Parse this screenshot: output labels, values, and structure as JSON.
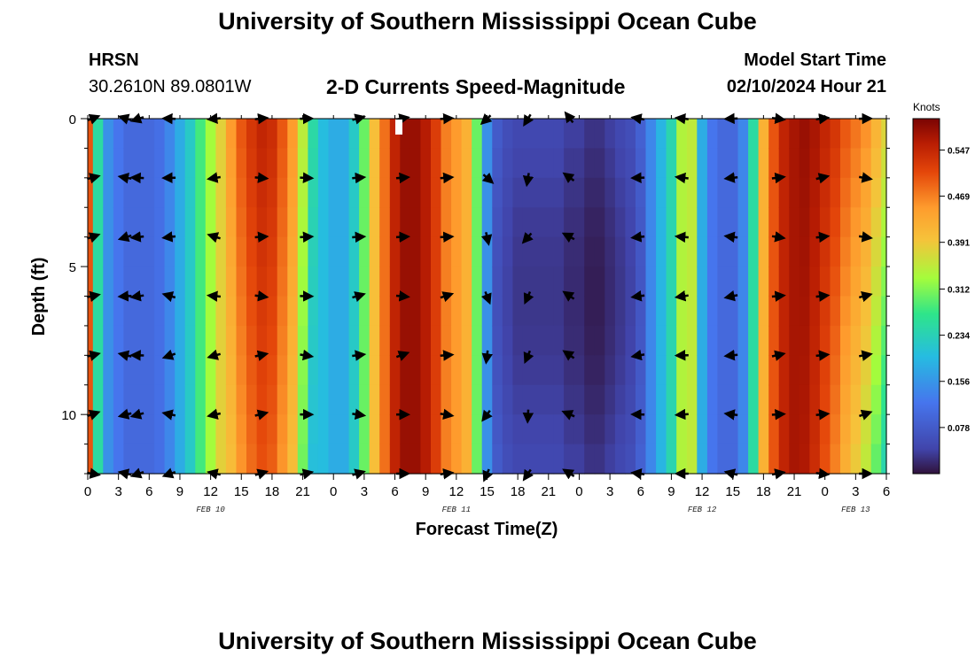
{
  "header": {
    "title": "University of Southern Mississippi Ocean Cube",
    "station": "HRSN",
    "coords": "30.2610N  89.0801W",
    "chart_title": "2-D Currents Speed-Magnitude",
    "start_label": "Model Start Time",
    "start_value": "02/10/2024 Hour 21"
  },
  "footer": {
    "title": "University of Southern Mississippi Ocean Cube"
  },
  "chart_data": {
    "type": "heatmap",
    "title": "2-D Currents Speed-Magnitude",
    "xlabel": "Forecast Time(Z)",
    "ylabel": "Depth (ft)",
    "colorbar_label": "Knots",
    "x_range_hours": [
      0,
      78
    ],
    "y_range_ft": [
      0,
      12
    ],
    "x_tick_labels": [
      "0",
      "3",
      "6",
      "9",
      "12",
      "15",
      "18",
      "21",
      "0",
      "3",
      "6",
      "9",
      "12",
      "15",
      "18",
      "21",
      "0",
      "3",
      "6",
      "9",
      "12",
      "15",
      "18",
      "21",
      "0",
      "3",
      "6"
    ],
    "y_ticks": [
      0,
      5,
      10
    ],
    "date_labels": [
      {
        "label": "FEB 10",
        "hour": 12
      },
      {
        "label": "FEB 11",
        "hour": 36
      },
      {
        "label": "FEB 12",
        "hour": 60
      },
      {
        "label": "FEB 13",
        "hour": 75
      }
    ],
    "colorbar_ticks": [
      "0.078",
      "0.156",
      "0.234",
      "0.312",
      "0.391",
      "0.469",
      "0.547"
    ],
    "color_range": [
      0.0,
      0.6
    ],
    "speed_profile_hours": [
      0,
      1,
      2,
      3,
      4,
      5,
      6,
      7,
      8,
      9,
      10,
      11,
      12,
      13,
      14,
      15,
      16,
      17,
      18,
      19,
      20,
      21,
      22,
      23,
      24,
      25,
      26,
      27,
      28,
      29,
      30,
      31,
      32,
      33,
      34,
      35,
      36,
      37,
      38,
      39,
      40,
      41,
      42,
      43,
      44,
      45,
      46,
      47,
      48,
      49,
      50,
      51,
      52,
      53,
      54,
      55,
      56,
      57,
      58,
      59,
      60,
      61,
      62,
      63,
      64,
      65,
      66,
      67,
      68,
      69,
      70,
      71,
      72,
      73,
      74,
      75,
      76,
      77,
      78
    ],
    "speed_profile_knots": [
      0.5,
      0.25,
      0.15,
      0.12,
      0.1,
      0.1,
      0.1,
      0.11,
      0.14,
      0.18,
      0.22,
      0.28,
      0.33,
      0.38,
      0.45,
      0.5,
      0.53,
      0.55,
      0.54,
      0.5,
      0.45,
      0.35,
      0.25,
      0.2,
      0.18,
      0.18,
      0.22,
      0.3,
      0.4,
      0.48,
      0.55,
      0.58,
      0.58,
      0.56,
      0.52,
      0.47,
      0.45,
      0.42,
      0.3,
      0.15,
      0.08,
      0.06,
      0.05,
      0.05,
      0.05,
      0.05,
      0.05,
      0.04,
      0.04,
      0.03,
      0.03,
      0.04,
      0.05,
      0.06,
      0.09,
      0.14,
      0.19,
      0.24,
      0.34,
      0.35,
      0.18,
      0.12,
      0.1,
      0.1,
      0.14,
      0.25,
      0.42,
      0.5,
      0.55,
      0.57,
      0.58,
      0.57,
      0.55,
      0.53,
      0.5,
      0.48,
      0.46,
      0.42,
      0.38
    ],
    "arrows": {
      "columns_hours": [
        0.4,
        3.8,
        5,
        8.1,
        12.5,
        16.8,
        21.2,
        26.3,
        30.6,
        34.9,
        39,
        43,
        47.1,
        53.9,
        58.2,
        63,
        67.3,
        71.6,
        75.8
      ],
      "rows_ft": [
        0,
        2,
        4,
        6,
        8,
        10,
        12
      ]
    }
  }
}
